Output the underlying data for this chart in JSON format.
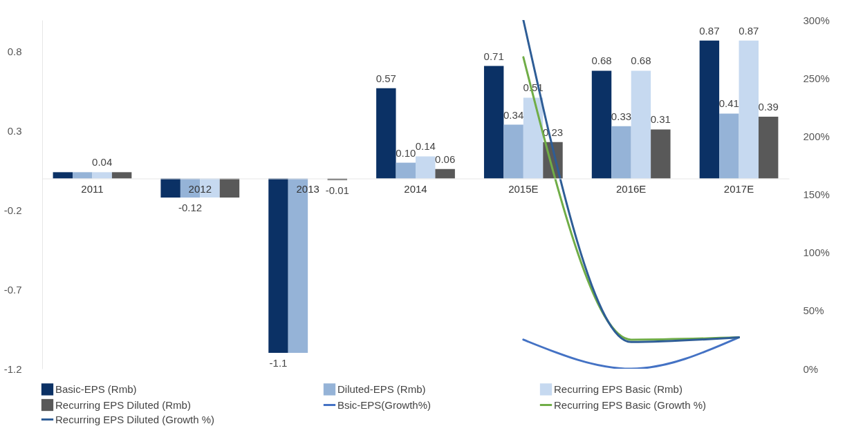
{
  "chart_data": {
    "type": "bar",
    "categories": [
      "2011",
      "2012",
      "2013",
      "2014",
      "2015E",
      "2016E",
      "2017E"
    ],
    "ylim": [
      -1.2,
      1.0
    ],
    "yticks": [
      -1.2,
      -0.7,
      -0.2,
      0.3,
      0.8
    ],
    "y2lim": [
      0,
      300
    ],
    "y2ticks": [
      {
        "value": 0,
        "label": "0%"
      },
      {
        "value": 50,
        "label": "50%"
      },
      {
        "value": 100,
        "label": "100%"
      },
      {
        "value": 150,
        "label": "150%"
      },
      {
        "value": 200,
        "label": "200%"
      },
      {
        "value": 250,
        "label": "250%"
      },
      {
        "value": 300,
        "label": "300%"
      }
    ],
    "grid": false,
    "legend": "bottom",
    "series": [
      {
        "name": "Basic-EPS (Rmb)",
        "type": "bar",
        "color": "#0b3165",
        "values": [
          0.04,
          -0.12,
          -1.1,
          0.57,
          0.71,
          0.68,
          0.87
        ],
        "value_labels": [
          null,
          null,
          "-1.1",
          "0.57",
          "0.71",
          "0.68",
          "0.87"
        ]
      },
      {
        "name": "Diluted-EPS (Rmb)",
        "type": "bar",
        "color": "#95b3d7",
        "values": [
          0.04,
          -0.12,
          -1.1,
          0.1,
          0.34,
          0.33,
          0.41
        ],
        "value_labels": [
          null,
          "-0.12",
          null,
          "0.10",
          "0.34",
          "0.33",
          "0.41"
        ]
      },
      {
        "name": "Recurring EPS Basic (Rmb)",
        "type": "bar",
        "color": "#c6d9f0",
        "values": [
          0.04,
          -0.12,
          null,
          0.14,
          0.51,
          0.68,
          0.87
        ],
        "value_labels": [
          "0.04",
          null,
          null,
          "0.14",
          "0.51",
          "0.68",
          "0.87"
        ]
      },
      {
        "name": "Recurring EPS Diluted (Rmb)",
        "type": "bar",
        "color": "#595959",
        "values": [
          0.04,
          -0.12,
          -0.01,
          0.06,
          0.23,
          0.31,
          0.39
        ],
        "value_labels": [
          null,
          null,
          "-0.01",
          "0.06",
          "0.23",
          "0.31",
          "0.39"
        ]
      },
      {
        "name": "Bsic-EPS(Growth%)",
        "type": "line",
        "axis": "y2",
        "color": "#4472c4",
        "x": [
          "2015E",
          "2016E",
          "2017E"
        ],
        "values": [
          25,
          0,
          27
        ]
      },
      {
        "name": "Recurring EPS Basic (Growth %)",
        "type": "line",
        "axis": "y2",
        "color": "#70ad47",
        "x": [
          "2015E",
          "2016E",
          "2017E"
        ],
        "values": [
          268,
          25,
          27
        ]
      },
      {
        "name": "Recurring EPS Diluted (Growth %)",
        "type": "line",
        "axis": "y2",
        "color": "#2e5d96",
        "x": [
          "2015E",
          "2016E",
          "2017E"
        ],
        "values": [
          300,
          23,
          27
        ]
      }
    ]
  }
}
